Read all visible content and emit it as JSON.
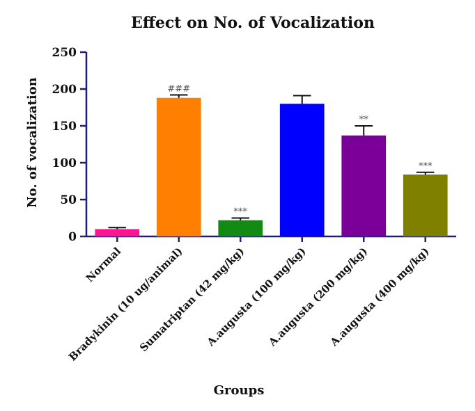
{
  "chart_data": {
    "type": "bar",
    "title": "Effect on No. of Vocalization",
    "xlabel": "Groups",
    "ylabel": "No. of vocalization",
    "ylim": [
      0,
      250
    ],
    "yticks": [
      0,
      50,
      100,
      150,
      200,
      250
    ],
    "categories": [
      "Normal",
      "Bradykinin (10 ug/animal)",
      "Sumatriptan (42 mg/kg)",
      "A.augusta (100 mg/kg)",
      "A.augusta (200 mg/kg)",
      "A.augusta (400 mg/kg)"
    ],
    "values": [
      10,
      188,
      22,
      180,
      137,
      84
    ],
    "errors": [
      2,
      4,
      3,
      11,
      13,
      3
    ],
    "significance": [
      "",
      "###",
      "***",
      "",
      "**",
      "***"
    ],
    "colors": [
      "#ff1493",
      "#ff7f00",
      "#138a13",
      "#0000ff",
      "#7a0099",
      "#808000"
    ],
    "axis_color": "#1f1f7a",
    "grid": false,
    "legend": "none"
  }
}
